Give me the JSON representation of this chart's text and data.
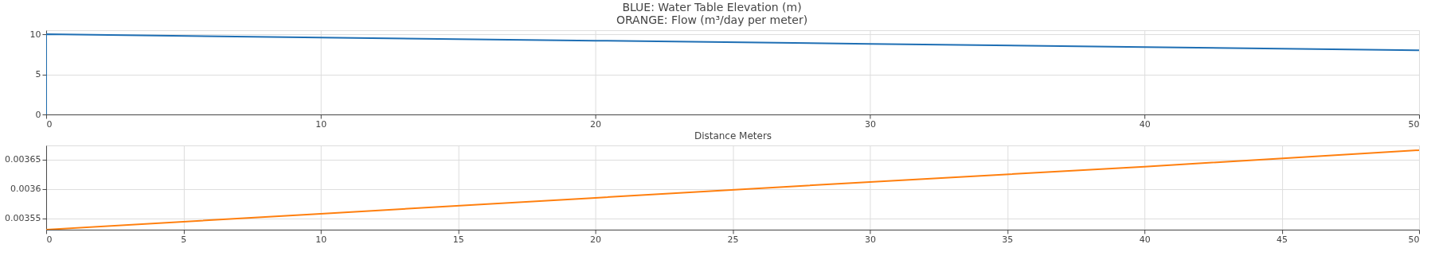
{
  "chart_data": [
    {
      "type": "line",
      "title": [
        "BLUE: Water Table Elevation (m)",
        "ORANGE: Flow (m³/day per meter)"
      ],
      "xlabel": "Distance Meters",
      "x": [
        0,
        0,
        10,
        20,
        30,
        40,
        50
      ],
      "series": [
        {
          "color": "#1f6fb4",
          "values": [
            0,
            10,
            9.6,
            9.2,
            8.8,
            8.4,
            8
          ]
        }
      ],
      "xlim": [
        0,
        50
      ],
      "xticks": [
        0,
        10,
        20,
        30,
        40,
        50
      ],
      "ylim": [
        0,
        10.5
      ],
      "yticks": [
        0,
        5,
        10
      ],
      "grid": true
    },
    {
      "type": "line",
      "x": [
        0,
        10,
        20,
        30,
        40,
        50
      ],
      "series": [
        {
          "color": "#ff7f0e",
          "values": [
            0.003531,
            0.003558,
            0.003585,
            0.003612,
            0.003638,
            0.003666
          ]
        }
      ],
      "xlim": [
        0,
        50
      ],
      "xticks": [
        0,
        5,
        10,
        15,
        20,
        25,
        30,
        35,
        40,
        45,
        50
      ],
      "ylim": [
        0.003531,
        0.003674
      ],
      "yticks": [
        0.00355,
        0.0036,
        0.00365
      ],
      "grid": true
    }
  ]
}
